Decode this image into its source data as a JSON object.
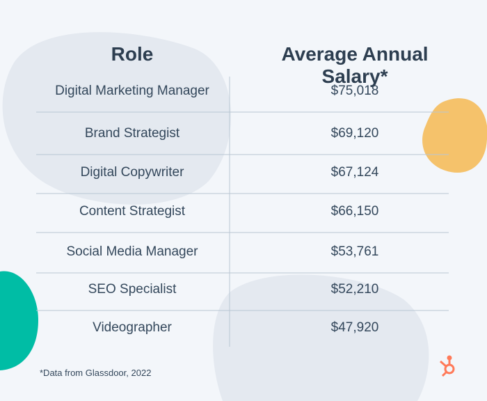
{
  "table": {
    "header": [
      "Role",
      "Average Annual Salary*"
    ],
    "rows": [
      [
        "Digital Marketing Manager",
        "$75,018"
      ],
      [
        "Brand Strategist",
        "$69,120"
      ],
      [
        "Digital Copywriter",
        "$67,124"
      ],
      [
        "Content Strategist",
        "$66,150"
      ],
      [
        "Social Media Manager",
        "$53,761"
      ],
      [
        "SEO Specialist",
        "$52,210"
      ],
      [
        "Videographer",
        "$47,920"
      ]
    ]
  },
  "footnote": "*Data from Glassdoor, 2022"
}
